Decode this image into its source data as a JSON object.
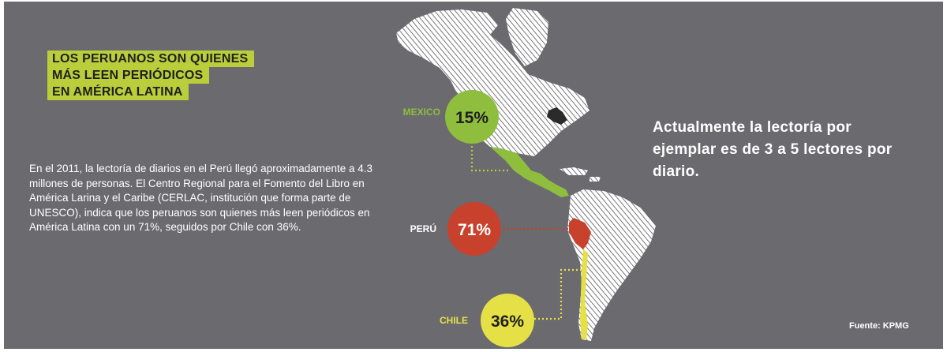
{
  "title": {
    "line1": "LOS PERUANOS SON QUIENES",
    "line2": "MÁS LEEN PERIÓDICOS",
    "line3": "EN AMÉRICA LATINA"
  },
  "intro": "En el 2011, la lectoría de diarios en el Perú llegó aproximadamente a 4.3 millones de personas. El Centro Regional para el Fomento del Libro en América Larina y el Caribe (CERLAC, institución que forma parte de UNESCO), indica que los peruanos son quienes más leen periódicos en América Latina con un 71%, seguidos por Chile con 36%.",
  "countries": [
    {
      "name": "MEXICO",
      "value": "15%",
      "color": "#8fbe3f"
    },
    {
      "name": "PERÚ",
      "value": "71%",
      "color": "#c8412c"
    },
    {
      "name": "CHILE",
      "value": "36%",
      "color": "#e5e046"
    }
  ],
  "tagline": "Actualmente la lectoría por ejemplar es de 3 a 5 lectores por diario.",
  "source": "Fuente: KPMG",
  "colors": {
    "background": "#6b6a6f",
    "highlight": "#b9ce3a",
    "land": "#ffffff",
    "hatch": "#55555a"
  }
}
